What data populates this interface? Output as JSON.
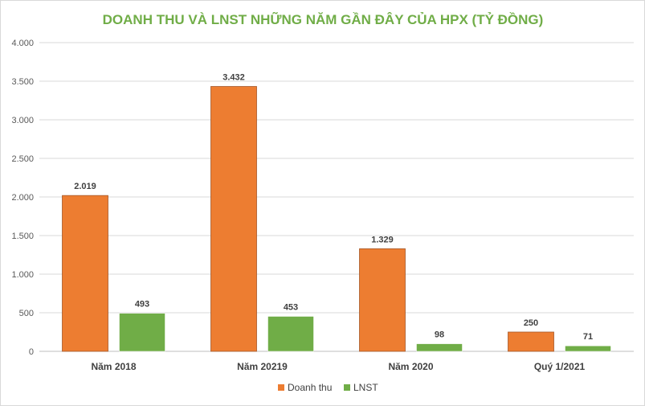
{
  "chart_data": {
    "type": "bar",
    "title": "DOANH THU VÀ LNST NHỮNG NĂM GẦN ĐÂY CỦA HPX (TỶ ĐỒNG)",
    "categories": [
      "Năm 2018",
      "Năm 20219",
      "Năm 2020",
      "Quý 1/2021"
    ],
    "series": [
      {
        "name": "Doanh thu",
        "color": "#ed7d31",
        "values": [
          2019,
          3432,
          1329,
          250
        ],
        "labels": [
          "2.019",
          "3.432",
          "1.329",
          "250"
        ]
      },
      {
        "name": "LNST",
        "color": "#70ad47",
        "values": [
          493,
          453,
          98,
          71
        ],
        "labels": [
          "493",
          "453",
          "98",
          "71"
        ]
      }
    ],
    "ylim": [
      0,
      4000
    ],
    "yticks": [
      0,
      500,
      1000,
      1500,
      2000,
      2500,
      3000,
      3500,
      4000
    ],
    "ytick_labels": [
      "0",
      "500",
      "1.000",
      "1.500",
      "2.000",
      "2.500",
      "3.000",
      "3.500",
      "4.000"
    ],
    "xlabel": "",
    "ylabel": "",
    "grid": true,
    "legend_position": "bottom"
  }
}
